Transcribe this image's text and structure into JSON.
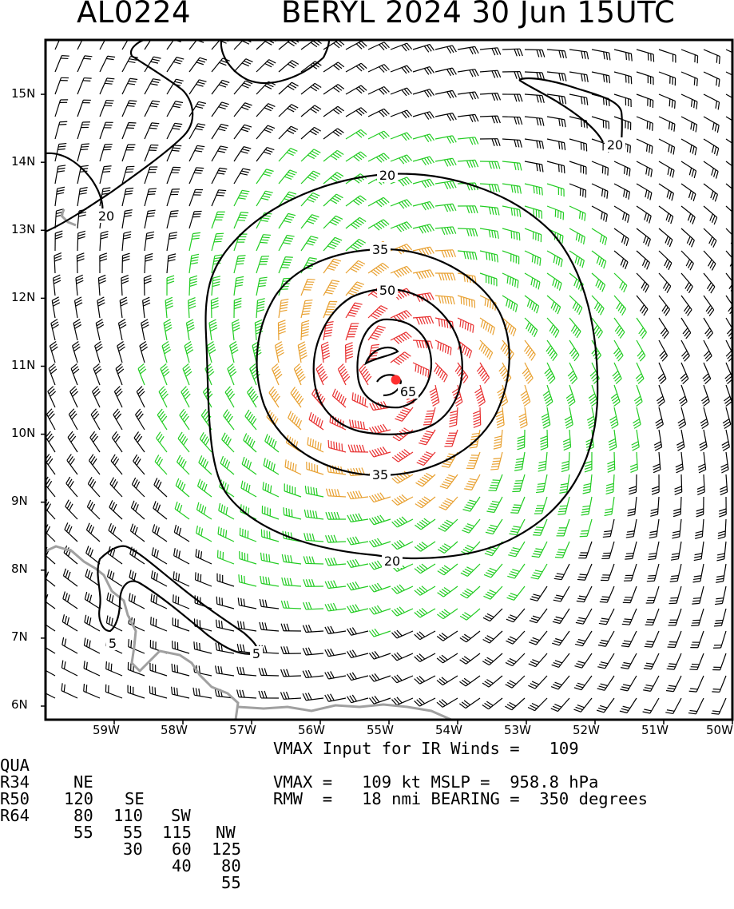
{
  "header": {
    "storm_id": "AL0224",
    "title": "BERYL 2024 30 Jun 15UTC"
  },
  "axes": {
    "lat_labels": [
      "15N",
      "14N",
      "13N",
      "12N",
      "11N",
      "10N",
      "9N",
      "8N",
      "7N",
      "6N"
    ],
    "lon_labels": [
      "59W",
      "58W",
      "57W",
      "56W",
      "55W",
      "54W",
      "53W",
      "52W",
      "51W",
      "50W"
    ],
    "lat_range": [
      5.8,
      15.8
    ],
    "lon_range": [
      -60.0,
      -50.0
    ]
  },
  "contours": {
    "labels": [
      "20",
      "20",
      "20",
      "35",
      "50",
      "65",
      "35",
      "20",
      "5",
      "5"
    ]
  },
  "table": {
    "header": [
      "QUA",
      "NE",
      "SE",
      "SW",
      "NW"
    ],
    "rows": [
      {
        "label": "R34",
        "values": [
          "120",
          "110",
          "115",
          "125"
        ]
      },
      {
        "label": "R50",
        "values": [
          "80",
          "55",
          "60",
          "80"
        ]
      },
      {
        "label": "R64",
        "values": [
          "55",
          "30",
          "40",
          "55"
        ]
      }
    ]
  },
  "info": {
    "line1": "VMAX Input for IR Winds =   109",
    "line2": "VMAX =   109 kt MSLP =  958.8 hPa",
    "line3": "RMW  =   18 nmi BEARING =  350 degrees"
  },
  "colors": {
    "barb_black": "#000000",
    "barb_green": "#22cc22",
    "barb_orange": "#e8a030",
    "barb_red": "#e83030",
    "center": "#ff3030",
    "coast": "#a0a0a0"
  },
  "storm": {
    "center_lat": 10.8,
    "center_lon": -54.9,
    "vmax_kt": 109
  }
}
